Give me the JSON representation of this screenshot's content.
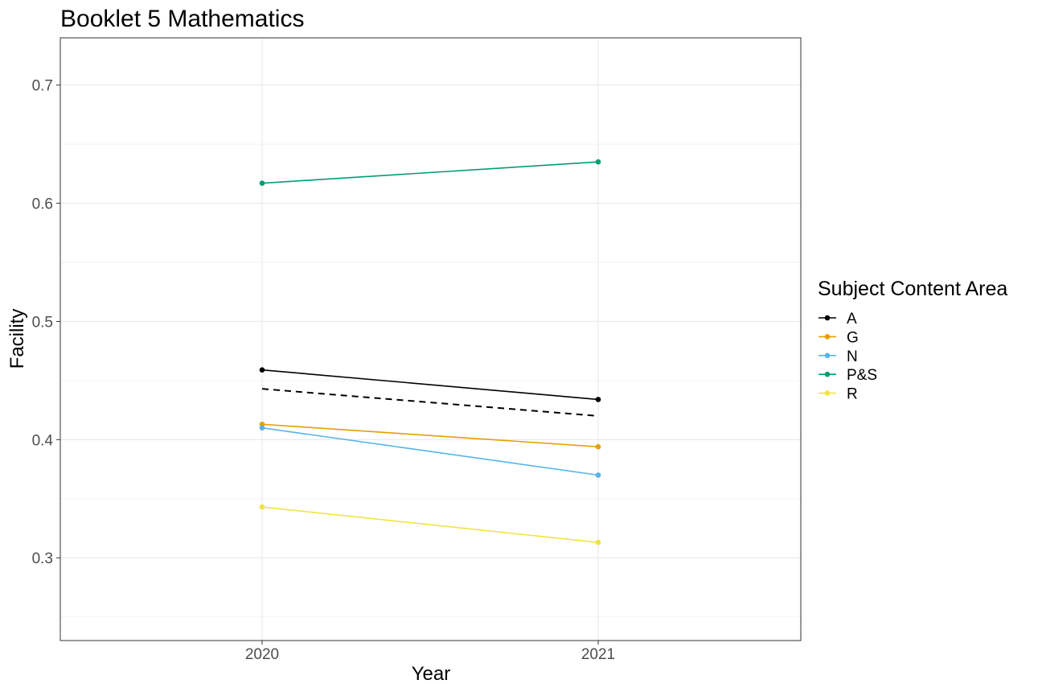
{
  "chart_data": {
    "type": "line",
    "title": "Booklet 5 Mathematics",
    "xlabel": "Year",
    "ylabel": "Facility",
    "categories": [
      "2020",
      "2021"
    ],
    "ylim": [
      0.23,
      0.74
    ],
    "y_ticks": [
      0.3,
      0.4,
      0.5,
      0.6,
      0.7
    ],
    "y_tick_labels": [
      "0.3",
      "0.4",
      "0.5",
      "0.6",
      "0.7"
    ],
    "grid": true,
    "legend": {
      "title": "Subject Content Area",
      "position": "right"
    },
    "series": [
      {
        "name": "A",
        "color": "#000000",
        "values": [
          0.459,
          0.434
        ]
      },
      {
        "name": "G",
        "color": "#E69F00",
        "values": [
          0.413,
          0.394
        ]
      },
      {
        "name": "N",
        "color": "#56B4E9",
        "values": [
          0.41,
          0.37
        ]
      },
      {
        "name": "P&S",
        "color": "#009E73",
        "values": [
          0.617,
          0.635
        ]
      },
      {
        "name": "R",
        "color": "#F0E442",
        "values": [
          0.343,
          0.313
        ]
      }
    ],
    "reference_line": {
      "style": "dashed",
      "color": "#000000",
      "values": [
        0.443,
        0.42
      ]
    }
  }
}
